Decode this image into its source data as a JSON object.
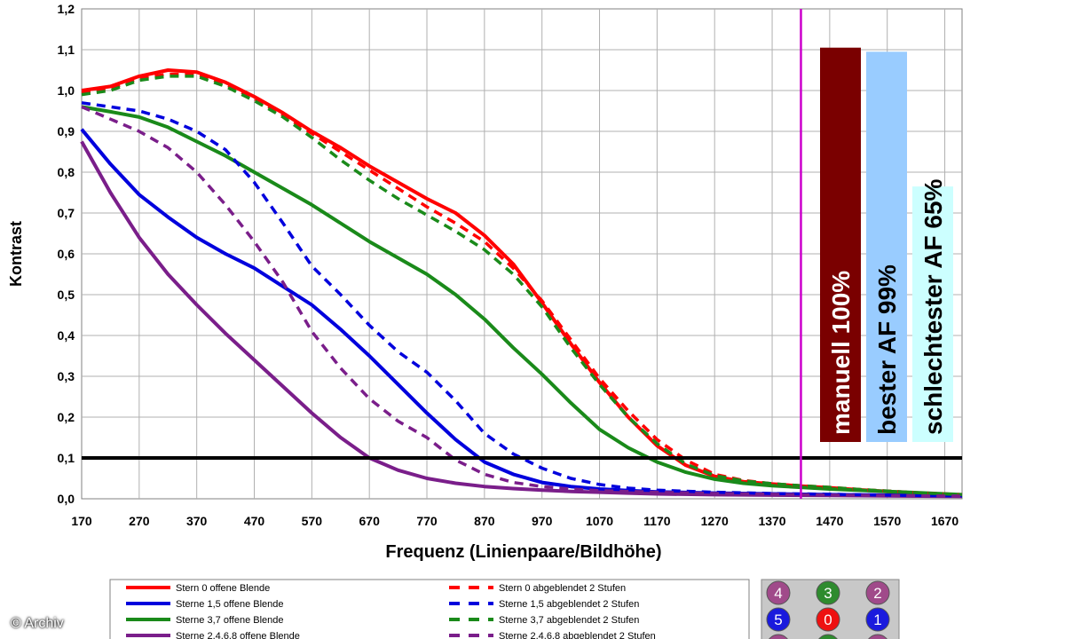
{
  "chart_data": {
    "type": "line",
    "xlabel": "Frequenz (Linienpaare/Bildhöhe)",
    "ylabel": "Kontrast",
    "xlim": [
      170,
      1700
    ],
    "ylim": [
      0,
      1.2
    ],
    "x_ticks": [
      "170",
      "270",
      "370",
      "470",
      "570",
      "670",
      "770",
      "870",
      "970",
      "1070",
      "1170",
      "1270",
      "1370",
      "1470",
      "1570",
      "1670"
    ],
    "y_ticks": [
      "0,0",
      "0,1",
      "0,2",
      "0,3",
      "0,4",
      "0,5",
      "0,6",
      "0,7",
      "0,8",
      "0,9",
      "1,0",
      "1,1",
      "1,2"
    ],
    "grid": true,
    "reference_line_y": 0.1,
    "marker_line_x": 1420,
    "series": [
      {
        "name": "Stern 0 offene Blende",
        "color": "#ff0000",
        "dash": false,
        "x": [
          170,
          220,
          270,
          320,
          370,
          420,
          470,
          520,
          570,
          620,
          670,
          720,
          770,
          820,
          870,
          920,
          970,
          1020,
          1070,
          1120,
          1170,
          1220,
          1270,
          1320,
          1370,
          1420,
          1470,
          1520,
          1570,
          1620,
          1700
        ],
        "y": [
          1.0,
          1.01,
          1.035,
          1.05,
          1.045,
          1.02,
          0.985,
          0.945,
          0.9,
          0.86,
          0.815,
          0.775,
          0.735,
          0.7,
          0.645,
          0.575,
          0.48,
          0.38,
          0.285,
          0.2,
          0.13,
          0.082,
          0.055,
          0.042,
          0.036,
          0.031,
          0.027,
          0.022,
          0.018,
          0.014,
          0.009
        ]
      },
      {
        "name": "Sterne 1,5 offene Blende",
        "color": "#0000dd",
        "dash": false,
        "x": [
          170,
          220,
          270,
          320,
          370,
          420,
          470,
          520,
          570,
          620,
          670,
          720,
          770,
          820,
          870,
          920,
          970,
          1020,
          1070,
          1120,
          1170,
          1270,
          1370,
          1470,
          1570,
          1700
        ],
        "y": [
          0.905,
          0.82,
          0.745,
          0.69,
          0.64,
          0.6,
          0.565,
          0.52,
          0.475,
          0.415,
          0.35,
          0.28,
          0.21,
          0.145,
          0.09,
          0.06,
          0.04,
          0.03,
          0.024,
          0.02,
          0.017,
          0.014,
          0.012,
          0.01,
          0.009,
          0.007
        ]
      },
      {
        "name": "Sterne 3,7 offene Blende",
        "color": "#1a8a1a",
        "dash": false,
        "x": [
          170,
          220,
          270,
          320,
          370,
          420,
          470,
          520,
          570,
          620,
          670,
          720,
          770,
          820,
          870,
          920,
          970,
          1020,
          1070,
          1120,
          1170,
          1220,
          1270,
          1320,
          1370,
          1420,
          1470,
          1570,
          1700
        ],
        "y": [
          0.96,
          0.948,
          0.935,
          0.91,
          0.875,
          0.84,
          0.8,
          0.76,
          0.72,
          0.675,
          0.63,
          0.59,
          0.55,
          0.5,
          0.44,
          0.37,
          0.305,
          0.235,
          0.17,
          0.125,
          0.09,
          0.065,
          0.048,
          0.038,
          0.032,
          0.028,
          0.024,
          0.018,
          0.01
        ]
      },
      {
        "name": "Sterne 2,4,6,8 offene Blende",
        "color": "#7a1e8a",
        "dash": false,
        "x": [
          170,
          220,
          270,
          320,
          370,
          420,
          470,
          520,
          570,
          620,
          670,
          720,
          770,
          820,
          870,
          920,
          970,
          1020,
          1070,
          1120,
          1170,
          1270,
          1370,
          1470,
          1570,
          1700
        ],
        "y": [
          0.875,
          0.75,
          0.64,
          0.55,
          0.475,
          0.405,
          0.34,
          0.275,
          0.21,
          0.15,
          0.1,
          0.07,
          0.05,
          0.038,
          0.03,
          0.025,
          0.021,
          0.018,
          0.016,
          0.014,
          0.012,
          0.01,
          0.009,
          0.008,
          0.007,
          0.006
        ]
      },
      {
        "name": "Stern 0 abgeblendet 2 Stufen",
        "color": "#ff0000",
        "dash": true,
        "x": [
          170,
          220,
          270,
          320,
          370,
          420,
          470,
          520,
          570,
          620,
          670,
          720,
          770,
          820,
          870,
          920,
          970,
          1020,
          1070,
          1120,
          1170,
          1220,
          1270,
          1320,
          1370,
          1420,
          1470,
          1520,
          1570,
          1620,
          1700
        ],
        "y": [
          0.995,
          1.005,
          1.03,
          1.04,
          1.04,
          1.015,
          0.98,
          0.94,
          0.895,
          0.85,
          0.805,
          0.76,
          0.715,
          0.675,
          0.63,
          0.565,
          0.485,
          0.39,
          0.295,
          0.215,
          0.145,
          0.095,
          0.06,
          0.045,
          0.037,
          0.032,
          0.028,
          0.023,
          0.019,
          0.015,
          0.01
        ]
      },
      {
        "name": "Sterne 1,5 abgeblendet 2 Stufen",
        "color": "#0000dd",
        "dash": true,
        "x": [
          170,
          220,
          270,
          320,
          370,
          420,
          470,
          520,
          570,
          620,
          670,
          720,
          770,
          820,
          870,
          920,
          970,
          1020,
          1070,
          1120,
          1170,
          1270,
          1370,
          1470,
          1570,
          1700
        ],
        "y": [
          0.97,
          0.96,
          0.95,
          0.93,
          0.9,
          0.855,
          0.775,
          0.675,
          0.57,
          0.5,
          0.425,
          0.36,
          0.31,
          0.24,
          0.16,
          0.11,
          0.075,
          0.05,
          0.035,
          0.026,
          0.021,
          0.016,
          0.013,
          0.011,
          0.009,
          0.007
        ]
      },
      {
        "name": "Sterne 3,7 abgeblendet 2 Stufen",
        "color": "#1a8a1a",
        "dash": true,
        "x": [
          170,
          220,
          270,
          320,
          370,
          420,
          470,
          520,
          570,
          620,
          670,
          720,
          770,
          820,
          870,
          920,
          970,
          1020,
          1070,
          1120,
          1170,
          1220,
          1270,
          1320,
          1370,
          1420,
          1470,
          1520,
          1570,
          1620,
          1700
        ],
        "y": [
          0.99,
          1.0,
          1.025,
          1.035,
          1.035,
          1.01,
          0.975,
          0.935,
          0.885,
          0.83,
          0.78,
          0.735,
          0.695,
          0.655,
          0.61,
          0.55,
          0.47,
          0.37,
          0.28,
          0.2,
          0.135,
          0.085,
          0.057,
          0.044,
          0.037,
          0.032,
          0.028,
          0.023,
          0.019,
          0.015,
          0.01
        ]
      },
      {
        "name": "Sterne 2,4,6,8 abgeblendet 2 Stufen",
        "color": "#7a1e8a",
        "dash": true,
        "x": [
          170,
          220,
          270,
          320,
          370,
          420,
          470,
          520,
          570,
          620,
          670,
          720,
          770,
          820,
          870,
          920,
          970,
          1020,
          1070,
          1170,
          1270,
          1370,
          1470,
          1570,
          1700
        ],
        "y": [
          0.96,
          0.93,
          0.9,
          0.86,
          0.8,
          0.72,
          0.63,
          0.53,
          0.41,
          0.32,
          0.245,
          0.19,
          0.15,
          0.095,
          0.06,
          0.04,
          0.03,
          0.024,
          0.02,
          0.016,
          0.013,
          0.011,
          0.009,
          0.008,
          0.006
        ]
      }
    ],
    "bars": [
      {
        "label": "manuell 100%",
        "value": 1.105,
        "color": "#7a0000",
        "text_color": "#ffffff"
      },
      {
        "label": "bester AF 99%",
        "value": 1.095,
        "color": "#99ccff",
        "text_color": "#000000"
      },
      {
        "label": "schlechtester AF 65%",
        "value": 0.765,
        "color": "#ccffff",
        "text_color": "#000000"
      }
    ]
  },
  "legend_badges": [
    {
      "text": "4",
      "color": "#a04a8a"
    },
    {
      "text": "3",
      "color": "#2e8b2e"
    },
    {
      "text": "2",
      "color": "#a04a8a"
    },
    {
      "text": "5",
      "color": "#1a1add"
    },
    {
      "text": "0",
      "color": "#ee1111"
    },
    {
      "text": "1",
      "color": "#1a1add"
    },
    {
      "text": "",
      "color": "#a04a8a"
    },
    {
      "text": "",
      "color": "#2e8b2e"
    },
    {
      "text": "",
      "color": "#a04a8a"
    }
  ],
  "copyright": "© Archiv"
}
